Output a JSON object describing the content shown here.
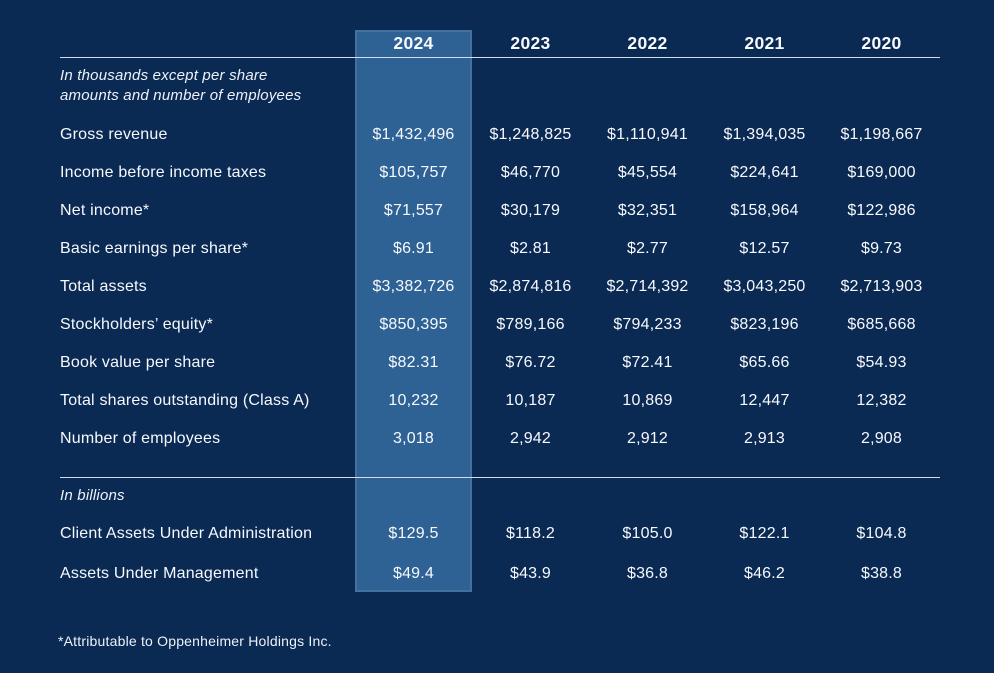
{
  "page": {
    "background_color": "#0a2a54",
    "highlight_color": "#2f6294",
    "rule_color": "#d5dce7",
    "text_color": "#ffffff"
  },
  "chart_data": {
    "type": "table",
    "columns": [
      "2024",
      "2023",
      "2022",
      "2021",
      "2020"
    ],
    "highlighted_column": "2024",
    "sections": [
      {
        "unit_note_lines": [
          "In thousands except per share",
          "amounts and number of employees"
        ],
        "rows": [
          {
            "label": "Gross revenue",
            "values": [
              "$1,432,496",
              "$1,248,825",
              "$1,110,941",
              "$1,394,035",
              "$1,198,667"
            ]
          },
          {
            "label": "Income before income taxes",
            "values": [
              "$105,757",
              "$46,770",
              "$45,554",
              "$224,641",
              "$169,000"
            ]
          },
          {
            "label": "Net income*",
            "values": [
              "$71,557",
              "$30,179",
              "$32,351",
              "$158,964",
              "$122,986"
            ]
          },
          {
            "label": "Basic earnings per share*",
            "values": [
              "$6.91",
              "$2.81",
              "$2.77",
              "$12.57",
              "$9.73"
            ]
          },
          {
            "label": "Total assets",
            "values": [
              "$3,382,726",
              "$2,874,816",
              "$2,714,392",
              "$3,043,250",
              "$2,713,903"
            ]
          },
          {
            "label": "Stockholders’ equity*",
            "values": [
              "$850,395",
              "$789,166",
              "$794,233",
              "$823,196",
              "$685,668"
            ]
          },
          {
            "label": "Book value per share",
            "values": [
              "$82.31",
              "$76.72",
              "$72.41",
              "$65.66",
              "$54.93"
            ]
          },
          {
            "label": "Total shares outstanding (Class A)",
            "values": [
              "10,232",
              "10,187",
              "10,869",
              "12,447",
              "12,382"
            ]
          },
          {
            "label": "Number of employees",
            "values": [
              "3,018",
              "2,942",
              "2,912",
              "2,913",
              "2,908"
            ]
          }
        ]
      },
      {
        "unit_note_lines": [
          "In billions"
        ],
        "rows": [
          {
            "label": "Client Assets Under Administration",
            "values": [
              "$129.5",
              "$118.2",
              "$105.0",
              "$122.1",
              "$104.8"
            ]
          },
          {
            "label": "Assets Under Management",
            "values": [
              "$49.4",
              "$43.9",
              "$36.8",
              "$46.2",
              "$38.8"
            ]
          }
        ]
      }
    ],
    "footnote": "*Attributable to Oppenheimer Holdings Inc."
  }
}
